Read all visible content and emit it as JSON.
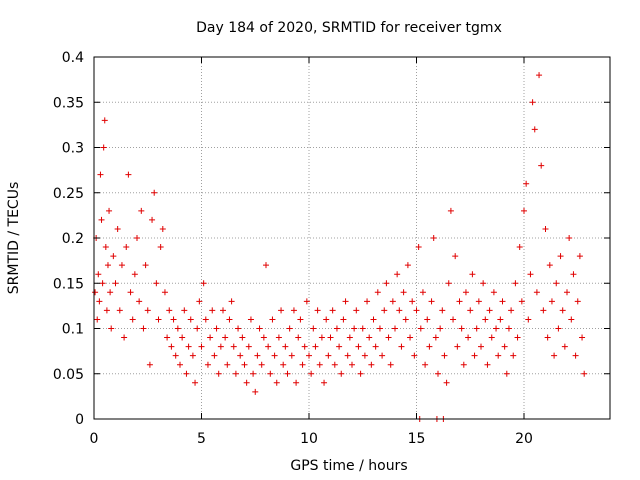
{
  "chart_data": {
    "type": "scatter",
    "title": "Day 184 of 2020, SRMTID for receiver tgmx",
    "xlabel": "GPS time / hours",
    "ylabel": "SRMTID / TECUs",
    "xlim": [
      0,
      24
    ],
    "ylim": [
      0,
      0.4
    ],
    "xticks": [
      0,
      5,
      10,
      15,
      20
    ],
    "xtick_labels": [
      "0",
      "5",
      "10",
      "15",
      "20"
    ],
    "yticks": [
      0,
      0.05,
      0.1,
      0.15,
      0.2,
      0.25,
      0.3,
      0.35,
      0.4
    ],
    "ytick_labels": [
      "0",
      "0.05",
      "0.1",
      "0.15",
      "0.2",
      "0.25",
      "0.3",
      "0.35",
      "0.4"
    ],
    "grid": true,
    "marker": "plus",
    "color": "#e00000",
    "series": [
      {
        "name": "SRMTID",
        "points": [
          [
            0.05,
            0.14
          ],
          [
            0.1,
            0.2
          ],
          [
            0.15,
            0.11
          ],
          [
            0.2,
            0.16
          ],
          [
            0.25,
            0.13
          ],
          [
            0.3,
            0.27
          ],
          [
            0.35,
            0.22
          ],
          [
            0.4,
            0.15
          ],
          [
            0.45,
            0.3
          ],
          [
            0.5,
            0.33
          ],
          [
            0.55,
            0.19
          ],
          [
            0.6,
            0.12
          ],
          [
            0.65,
            0.17
          ],
          [
            0.7,
            0.23
          ],
          [
            0.75,
            0.14
          ],
          [
            0.8,
            0.1
          ],
          [
            0.9,
            0.18
          ],
          [
            1.0,
            0.15
          ],
          [
            1.1,
            0.21
          ],
          [
            1.2,
            0.12
          ],
          [
            1.3,
            0.17
          ],
          [
            1.4,
            0.09
          ],
          [
            1.5,
            0.19
          ],
          [
            1.6,
            0.27
          ],
          [
            1.7,
            0.14
          ],
          [
            1.8,
            0.11
          ],
          [
            1.9,
            0.16
          ],
          [
            2.0,
            0.2
          ],
          [
            2.1,
            0.13
          ],
          [
            2.2,
            0.23
          ],
          [
            2.3,
            0.1
          ],
          [
            2.4,
            0.17
          ],
          [
            2.5,
            0.12
          ],
          [
            2.6,
            0.06
          ],
          [
            2.7,
            0.22
          ],
          [
            2.8,
            0.25
          ],
          [
            2.9,
            0.15
          ],
          [
            3.0,
            0.11
          ],
          [
            3.1,
            0.19
          ],
          [
            3.2,
            0.21
          ],
          [
            3.3,
            0.14
          ],
          [
            3.4,
            0.09
          ],
          [
            3.5,
            0.12
          ],
          [
            3.6,
            0.08
          ],
          [
            3.7,
            0.11
          ],
          [
            3.8,
            0.07
          ],
          [
            3.9,
            0.1
          ],
          [
            4.0,
            0.06
          ],
          [
            4.1,
            0.09
          ],
          [
            4.2,
            0.12
          ],
          [
            4.3,
            0.05
          ],
          [
            4.4,
            0.08
          ],
          [
            4.5,
            0.11
          ],
          [
            4.6,
            0.07
          ],
          [
            4.7,
            0.04
          ],
          [
            4.8,
            0.1
          ],
          [
            4.9,
            0.13
          ],
          [
            5.0,
            0.08
          ],
          [
            5.1,
            0.15
          ],
          [
            5.2,
            0.11
          ],
          [
            5.3,
            0.06
          ],
          [
            5.4,
            0.09
          ],
          [
            5.5,
            0.12
          ],
          [
            5.6,
            0.07
          ],
          [
            5.7,
            0.1
          ],
          [
            5.8,
            0.05
          ],
          [
            5.9,
            0.08
          ],
          [
            6.0,
            0.12
          ],
          [
            6.1,
            0.09
          ],
          [
            6.2,
            0.06
          ],
          [
            6.3,
            0.11
          ],
          [
            6.4,
            0.13
          ],
          [
            6.5,
            0.08
          ],
          [
            6.6,
            0.05
          ],
          [
            6.7,
            0.1
          ],
          [
            6.8,
            0.07
          ],
          [
            6.9,
            0.09
          ],
          [
            7.0,
            0.06
          ],
          [
            7.1,
            0.04
          ],
          [
            7.2,
            0.08
          ],
          [
            7.3,
            0.11
          ],
          [
            7.4,
            0.05
          ],
          [
            7.5,
            0.03
          ],
          [
            7.6,
            0.07
          ],
          [
            7.7,
            0.1
          ],
          [
            7.8,
            0.06
          ],
          [
            7.9,
            0.09
          ],
          [
            8.0,
            0.17
          ],
          [
            8.1,
            0.08
          ],
          [
            8.2,
            0.05
          ],
          [
            8.3,
            0.11
          ],
          [
            8.4,
            0.07
          ],
          [
            8.5,
            0.04
          ],
          [
            8.6,
            0.09
          ],
          [
            8.7,
            0.12
          ],
          [
            8.8,
            0.06
          ],
          [
            8.9,
            0.08
          ],
          [
            9.0,
            0.05
          ],
          [
            9.1,
            0.1
          ],
          [
            9.2,
            0.07
          ],
          [
            9.3,
            0.12
          ],
          [
            9.4,
            0.04
          ],
          [
            9.5,
            0.09
          ],
          [
            9.6,
            0.11
          ],
          [
            9.7,
            0.06
          ],
          [
            9.8,
            0.08
          ],
          [
            9.9,
            0.13
          ],
          [
            10.0,
            0.07
          ],
          [
            10.1,
            0.05
          ],
          [
            10.2,
            0.1
          ],
          [
            10.3,
            0.08
          ],
          [
            10.4,
            0.12
          ],
          [
            10.5,
            0.06
          ],
          [
            10.6,
            0.09
          ],
          [
            10.7,
            0.04
          ],
          [
            10.8,
            0.11
          ],
          [
            10.9,
            0.07
          ],
          [
            11.0,
            0.09
          ],
          [
            11.1,
            0.12
          ],
          [
            11.2,
            0.06
          ],
          [
            11.3,
            0.1
          ],
          [
            11.4,
            0.08
          ],
          [
            11.5,
            0.05
          ],
          [
            11.6,
            0.11
          ],
          [
            11.7,
            0.13
          ],
          [
            11.8,
            0.07
          ],
          [
            11.9,
            0.09
          ],
          [
            12.0,
            0.06
          ],
          [
            12.1,
            0.1
          ],
          [
            12.2,
            0.12
          ],
          [
            12.3,
            0.08
          ],
          [
            12.4,
            0.05
          ],
          [
            12.5,
            0.1
          ],
          [
            12.6,
            0.07
          ],
          [
            12.7,
            0.13
          ],
          [
            12.8,
            0.09
          ],
          [
            12.9,
            0.06
          ],
          [
            13.0,
            0.11
          ],
          [
            13.1,
            0.08
          ],
          [
            13.2,
            0.14
          ],
          [
            13.3,
            0.1
          ],
          [
            13.4,
            0.07
          ],
          [
            13.5,
            0.12
          ],
          [
            13.6,
            0.15
          ],
          [
            13.7,
            0.09
          ],
          [
            13.8,
            0.06
          ],
          [
            13.9,
            0.13
          ],
          [
            14.0,
            0.1
          ],
          [
            14.1,
            0.16
          ],
          [
            14.2,
            0.12
          ],
          [
            14.3,
            0.08
          ],
          [
            14.4,
            0.14
          ],
          [
            14.5,
            0.11
          ],
          [
            14.6,
            0.17
          ],
          [
            14.7,
            0.09
          ],
          [
            14.8,
            0.13
          ],
          [
            14.9,
            0.07
          ],
          [
            15.0,
            0.12
          ],
          [
            15.1,
            0.19
          ],
          [
            15.2,
            0.1
          ],
          [
            15.3,
            0.14
          ],
          [
            15.4,
            0.06
          ],
          [
            15.5,
            0.11
          ],
          [
            15.6,
            0.08
          ],
          [
            15.7,
            0.13
          ],
          [
            15.8,
            0.2
          ],
          [
            15.9,
            0.09
          ],
          [
            16.0,
            0.05
          ],
          [
            16.1,
            0.1
          ],
          [
            16.2,
            0.12
          ],
          [
            16.3,
            0.07
          ],
          [
            16.4,
            0.04
          ],
          [
            16.5,
            0.15
          ],
          [
            16.6,
            0.23
          ],
          [
            16.7,
            0.11
          ],
          [
            16.8,
            0.18
          ],
          [
            16.9,
            0.08
          ],
          [
            17.0,
            0.13
          ],
          [
            17.1,
            0.1
          ],
          [
            17.2,
            0.06
          ],
          [
            17.3,
            0.14
          ],
          [
            17.4,
            0.09
          ],
          [
            17.5,
            0.12
          ],
          [
            17.6,
            0.16
          ],
          [
            17.7,
            0.07
          ],
          [
            17.8,
            0.1
          ],
          [
            17.9,
            0.13
          ],
          [
            18.0,
            0.08
          ],
          [
            18.1,
            0.15
          ],
          [
            18.2,
            0.11
          ],
          [
            18.3,
            0.06
          ],
          [
            18.4,
            0.12
          ],
          [
            18.5,
            0.09
          ],
          [
            18.6,
            0.14
          ],
          [
            18.7,
            0.1
          ],
          [
            18.8,
            0.07
          ],
          [
            18.9,
            0.11
          ],
          [
            19.0,
            0.13
          ],
          [
            19.1,
            0.08
          ],
          [
            19.2,
            0.05
          ],
          [
            19.3,
            0.1
          ],
          [
            19.4,
            0.12
          ],
          [
            19.5,
            0.07
          ],
          [
            19.6,
            0.15
          ],
          [
            19.7,
            0.09
          ],
          [
            19.8,
            0.19
          ],
          [
            19.9,
            0.13
          ],
          [
            20.0,
            0.23
          ],
          [
            20.1,
            0.26
          ],
          [
            20.2,
            0.11
          ],
          [
            20.3,
            0.16
          ],
          [
            20.4,
            0.35
          ],
          [
            20.5,
            0.32
          ],
          [
            20.6,
            0.14
          ],
          [
            20.7,
            0.38
          ],
          [
            20.8,
            0.28
          ],
          [
            20.9,
            0.12
          ],
          [
            21.0,
            0.21
          ],
          [
            21.1,
            0.09
          ],
          [
            21.2,
            0.17
          ],
          [
            21.3,
            0.13
          ],
          [
            21.4,
            0.07
          ],
          [
            21.5,
            0.15
          ],
          [
            21.6,
            0.1
          ],
          [
            21.7,
            0.18
          ],
          [
            21.8,
            0.12
          ],
          [
            21.9,
            0.08
          ],
          [
            22.0,
            0.14
          ],
          [
            22.1,
            0.2
          ],
          [
            22.2,
            0.11
          ],
          [
            22.3,
            0.16
          ],
          [
            22.4,
            0.07
          ],
          [
            22.5,
            0.13
          ],
          [
            22.6,
            0.18
          ],
          [
            22.7,
            0.09
          ],
          [
            22.8,
            0.05
          ],
          [
            15.15,
            0.0
          ],
          [
            15.95,
            0.0
          ],
          [
            16.25,
            0.0
          ]
        ]
      }
    ]
  }
}
